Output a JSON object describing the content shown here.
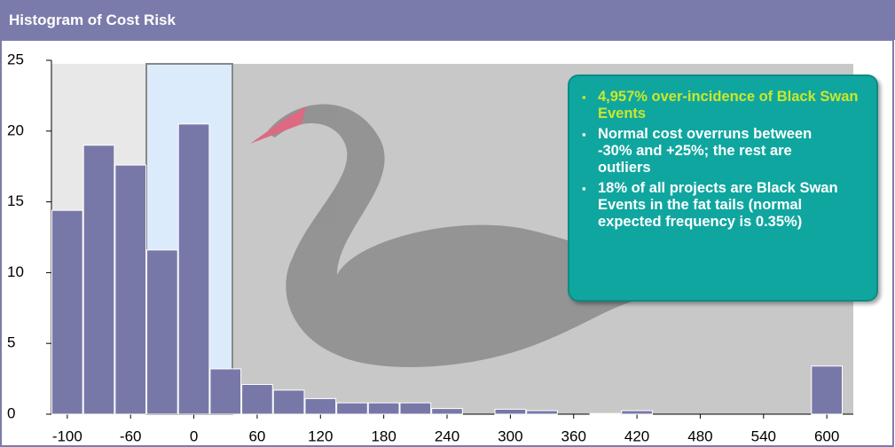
{
  "title": "Histogram of Cost Risk",
  "chart_data": {
    "type": "bar",
    "categories": [
      "-100",
      null,
      "-60",
      null,
      "0",
      null,
      "60",
      null,
      "120",
      null,
      "180",
      null,
      "240",
      null,
      "300",
      null,
      "360",
      null,
      "420",
      null,
      "480",
      null,
      "540",
      null,
      "600"
    ],
    "values": [
      14.4,
      19.0,
      17.6,
      11.6,
      20.5,
      3.2,
      2.1,
      1.7,
      1.1,
      0.8,
      0.8,
      0.8,
      0.4,
      0,
      0.35,
      0.25,
      0,
      0.05,
      0.25,
      0,
      0,
      0,
      0,
      0,
      3.4
    ],
    "color": "#7878a8",
    "ylim": [
      0,
      25
    ],
    "yticks": [
      0,
      5,
      10,
      15,
      20,
      25
    ],
    "grid": false
  },
  "annotations": [
    "4,957% over-incidence of Black Swan Events",
    "Normal cost overruns between -30% and +25%; the rest are outliers",
    "18% of all projects are Black Swan Events in the fat tails (normal expected frequency is 0.35%)"
  ]
}
